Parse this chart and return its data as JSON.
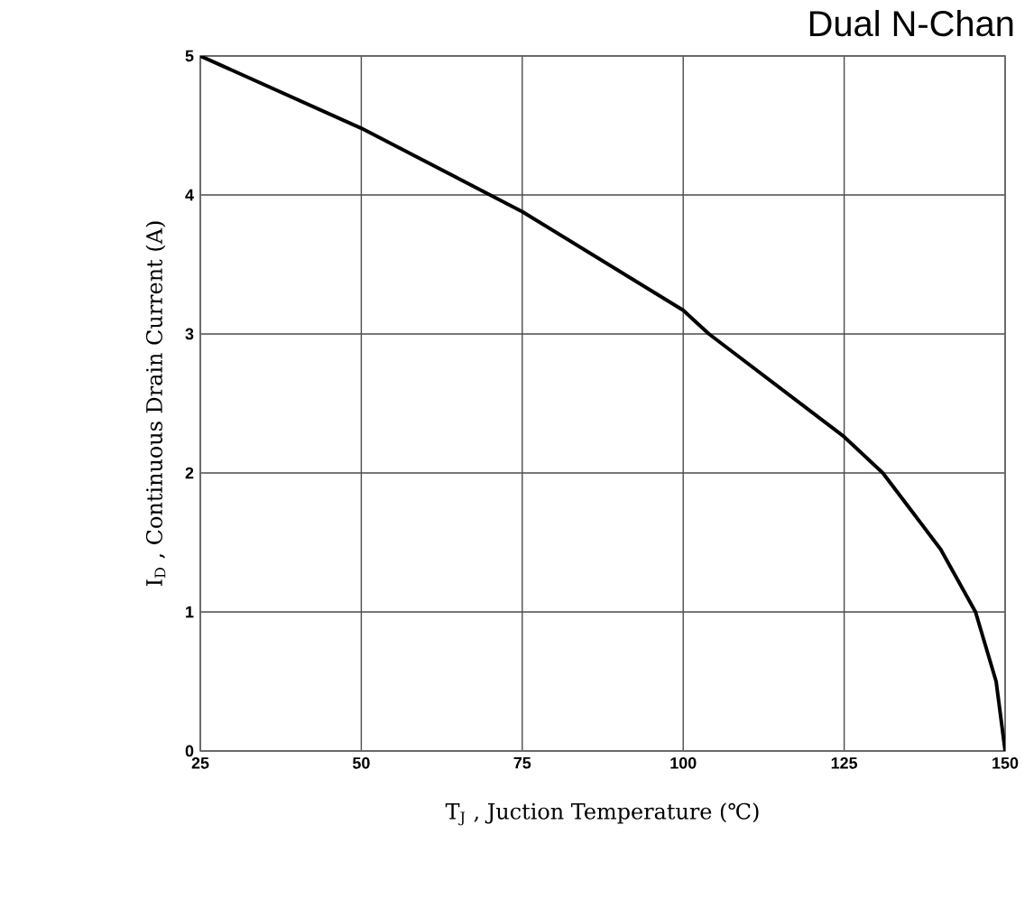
{
  "chart_data": {
    "type": "line",
    "title": "Dual N-Chan",
    "xlabel": "T$_{J}$ , Juction Temperature (℃)",
    "ylabel": "I$_{D}$ , Continuous Drain Current (A)",
    "x": [
      25,
      50,
      70,
      75,
      100,
      104,
      125,
      131,
      140,
      145.4,
      148.6,
      150
    ],
    "series": [
      {
        "color": "#000000",
        "values": [
          5,
          4.48,
          4,
          3.88,
          3.17,
          3,
          2.26,
          2,
          1.45,
          1,
          0.5,
          0
        ]
      }
    ],
    "xlim": [
      25,
      150
    ],
    "ylim": [
      0,
      5
    ],
    "xticks": [
      25,
      50,
      75,
      100,
      125,
      150
    ],
    "yticks": [
      0,
      1,
      2,
      3,
      4,
      5
    ],
    "grid": true,
    "marker": "none",
    "line_style": "solid"
  }
}
